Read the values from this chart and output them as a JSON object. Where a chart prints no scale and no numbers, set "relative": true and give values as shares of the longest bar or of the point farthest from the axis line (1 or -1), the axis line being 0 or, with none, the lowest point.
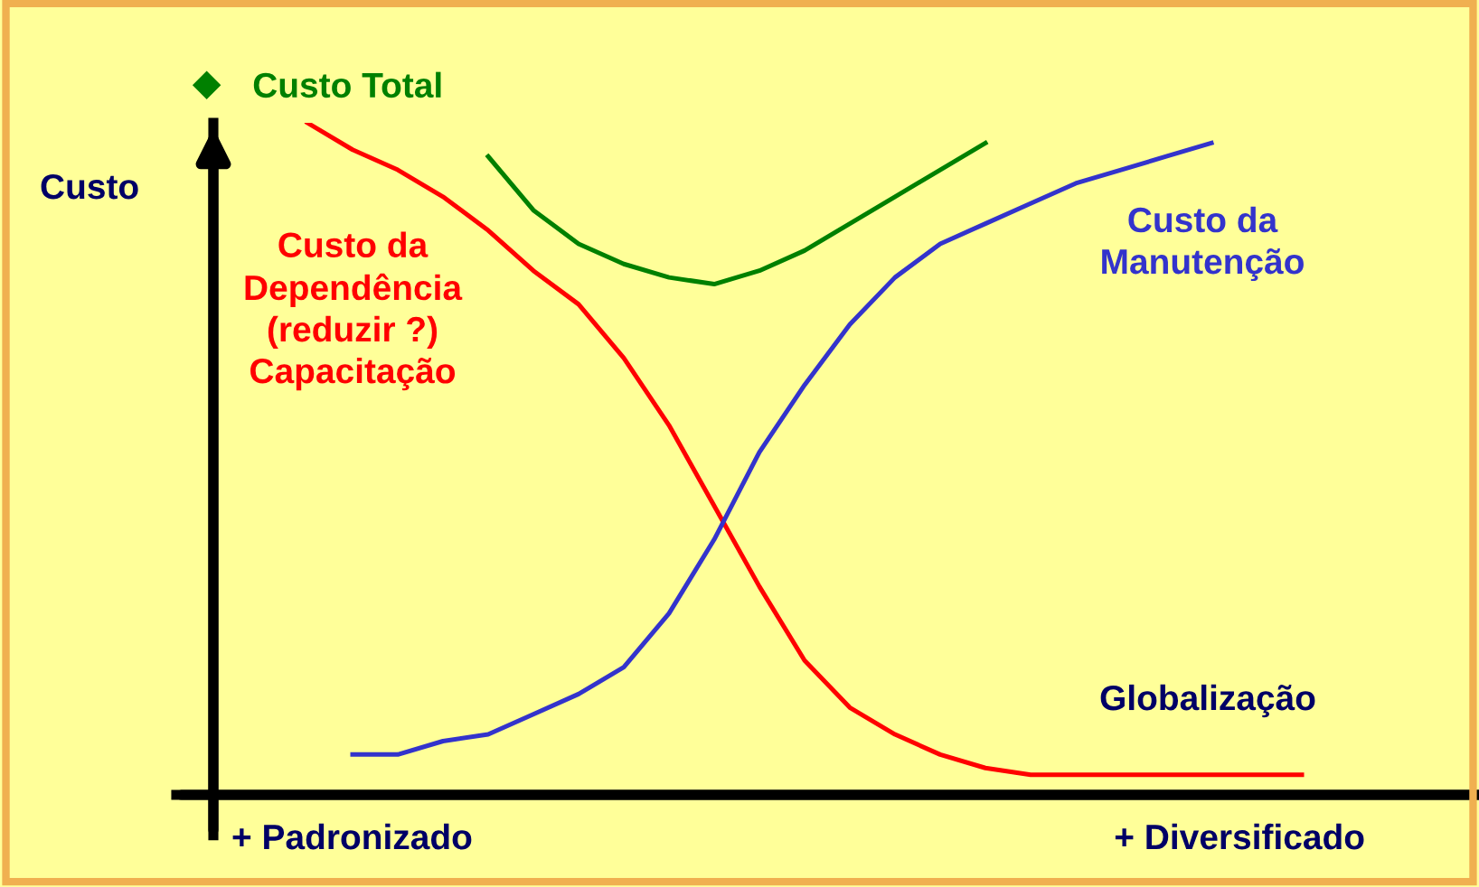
{
  "chart_data": {
    "type": "line",
    "relative": true,
    "ylabel": "Custo",
    "categories": [
      null,
      null,
      null,
      null,
      null,
      null,
      null,
      null,
      null,
      null,
      null,
      null,
      null,
      null,
      null,
      null,
      null,
      null,
      null,
      null,
      null,
      null,
      null
    ],
    "series": [
      {
        "name": "Custo Total",
        "color": "#008000",
        "values": [
          null,
          null,
          null,
          null,
          0.95,
          0.87,
          0.82,
          0.79,
          0.77,
          0.76,
          0.78,
          0.81,
          0.85,
          0.89,
          0.93,
          0.97,
          null,
          null,
          null,
          null,
          null,
          null,
          null
        ]
      },
      {
        "name": "Custo da\nDependência\n(reduzir ?)\nCapacitação",
        "color": "#ff0000",
        "values": [
          1.0,
          0.96,
          0.93,
          0.89,
          0.84,
          0.78,
          0.73,
          0.65,
          0.55,
          0.43,
          0.31,
          0.2,
          0.13,
          0.09,
          0.06,
          0.04,
          0.03,
          0.03,
          0.03,
          0.03,
          0.03,
          0.03,
          0.03
        ]
      },
      {
        "name": "Custo da\nManutenção",
        "color": "#3333cc",
        "values": [
          null,
          0.06,
          0.06,
          0.08,
          0.09,
          0.12,
          0.15,
          0.19,
          0.27,
          0.38,
          0.51,
          0.61,
          0.7,
          0.77,
          0.82,
          0.85,
          0.88,
          0.91,
          0.93,
          0.95,
          0.97,
          null,
          null
        ]
      }
    ],
    "annotations": [
      "Globalização",
      "+ Padronizado",
      "+ Diversificado"
    ],
    "legend": "top left",
    "marker": "none",
    "line_style": "solid"
  }
}
